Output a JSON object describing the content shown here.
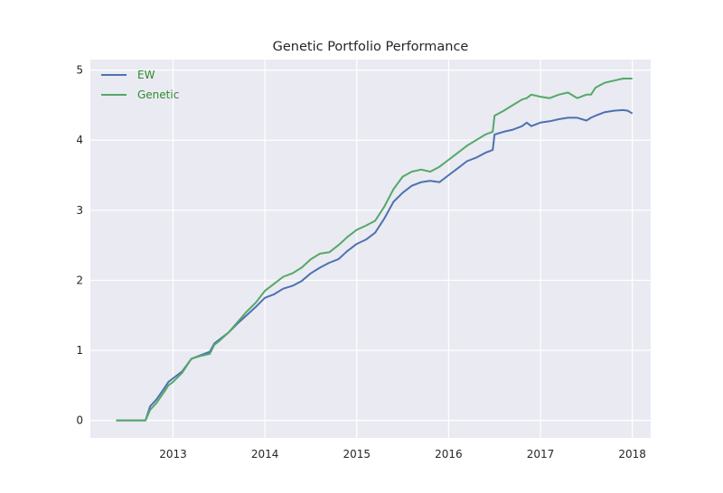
{
  "colors": {
    "background": "#eaeaf2",
    "grid": "#ffffff",
    "ew": "#4c72b0",
    "genetic": "#55a868",
    "legend_text": "#2e8b2e"
  },
  "chart_data": {
    "type": "line",
    "title": "Genetic Portfolio Performance",
    "xlabel": "",
    "ylabel": "",
    "xlim": [
      2012.1,
      2018.2
    ],
    "ylim": [
      -0.25,
      5.15
    ],
    "xticks": [
      2013,
      2014,
      2015,
      2016,
      2017,
      2018
    ],
    "xtick_labels": [
      "2013",
      "2014",
      "2015",
      "2016",
      "2017",
      "2018"
    ],
    "yticks": [
      0,
      1,
      2,
      3,
      4,
      5
    ],
    "ytick_labels": [
      "0",
      "1",
      "2",
      "3",
      "4",
      "5"
    ],
    "grid": true,
    "legend": "top-left",
    "series": [
      {
        "name": "EW",
        "color": "#4c72b0",
        "x": [
          2012.38,
          2012.5,
          2012.6,
          2012.7,
          2012.75,
          2012.82,
          2012.9,
          2012.95,
          2013.0,
          2013.1,
          2013.2,
          2013.3,
          2013.4,
          2013.45,
          2013.5,
          2013.6,
          2013.7,
          2013.8,
          2013.9,
          2014.0,
          2014.1,
          2014.2,
          2014.3,
          2014.4,
          2014.5,
          2014.6,
          2014.7,
          2014.8,
          2014.9,
          2015.0,
          2015.1,
          2015.2,
          2015.3,
          2015.4,
          2015.5,
          2015.6,
          2015.7,
          2015.8,
          2015.9,
          2016.0,
          2016.1,
          2016.2,
          2016.3,
          2016.4,
          2016.48,
          2016.5,
          2016.6,
          2016.7,
          2016.8,
          2016.85,
          2016.9,
          2017.0,
          2017.1,
          2017.2,
          2017.3,
          2017.4,
          2017.5,
          2017.55,
          2017.6,
          2017.7,
          2017.8,
          2017.9,
          2017.95,
          2018.0
        ],
        "values": [
          0,
          0,
          0,
          0,
          0.2,
          0.3,
          0.45,
          0.55,
          0.6,
          0.7,
          0.88,
          0.93,
          0.98,
          1.1,
          1.15,
          1.25,
          1.38,
          1.5,
          1.62,
          1.75,
          1.8,
          1.88,
          1.92,
          1.99,
          2.1,
          2.18,
          2.25,
          2.3,
          2.42,
          2.52,
          2.58,
          2.68,
          2.88,
          3.12,
          3.25,
          3.35,
          3.4,
          3.42,
          3.4,
          3.5,
          3.6,
          3.7,
          3.75,
          3.82,
          3.86,
          4.08,
          4.12,
          4.15,
          4.2,
          4.25,
          4.2,
          4.25,
          4.27,
          4.3,
          4.32,
          4.32,
          4.28,
          4.32,
          4.35,
          4.4,
          4.42,
          4.43,
          4.42,
          4.38
        ]
      },
      {
        "name": "Genetic",
        "color": "#55a868",
        "x": [
          2012.38,
          2012.5,
          2012.6,
          2012.7,
          2012.75,
          2012.82,
          2012.9,
          2012.95,
          2013.0,
          2013.1,
          2013.2,
          2013.3,
          2013.4,
          2013.45,
          2013.5,
          2013.6,
          2013.7,
          2013.8,
          2013.9,
          2014.0,
          2014.1,
          2014.2,
          2014.3,
          2014.4,
          2014.5,
          2014.6,
          2014.7,
          2014.8,
          2014.9,
          2015.0,
          2015.1,
          2015.2,
          2015.3,
          2015.4,
          2015.5,
          2015.6,
          2015.7,
          2015.8,
          2015.9,
          2016.0,
          2016.1,
          2016.2,
          2016.3,
          2016.4,
          2016.48,
          2016.5,
          2016.6,
          2016.7,
          2016.8,
          2016.85,
          2016.9,
          2017.0,
          2017.1,
          2017.2,
          2017.3,
          2017.4,
          2017.5,
          2017.55,
          2017.6,
          2017.7,
          2017.8,
          2017.9,
          2017.95,
          2018.0
        ],
        "values": [
          0,
          0,
          0,
          0,
          0.15,
          0.25,
          0.4,
          0.5,
          0.55,
          0.68,
          0.88,
          0.92,
          0.95,
          1.08,
          1.13,
          1.25,
          1.4,
          1.55,
          1.68,
          1.85,
          1.95,
          2.05,
          2.1,
          2.18,
          2.3,
          2.38,
          2.4,
          2.5,
          2.62,
          2.72,
          2.78,
          2.85,
          3.05,
          3.3,
          3.48,
          3.55,
          3.58,
          3.55,
          3.62,
          3.72,
          3.82,
          3.92,
          4.0,
          4.08,
          4.12,
          4.35,
          4.42,
          4.5,
          4.58,
          4.6,
          4.65,
          4.62,
          4.6,
          4.65,
          4.68,
          4.6,
          4.65,
          4.65,
          4.75,
          4.82,
          4.85,
          4.88,
          4.88,
          4.88
        ]
      }
    ]
  }
}
